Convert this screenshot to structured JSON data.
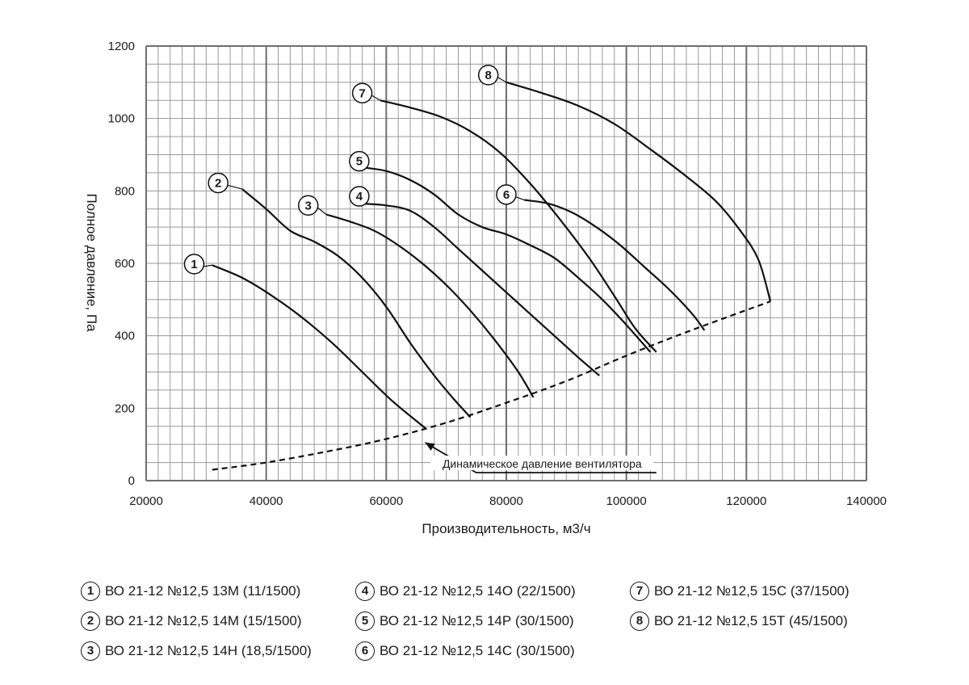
{
  "chart_data": {
    "type": "line",
    "xlabel": "Производительность, м3/ч",
    "ylabel": "Полное давление, Па",
    "xlim": [
      20000,
      140000
    ],
    "ylim": [
      0,
      1200
    ],
    "x_ticks": [
      "20000",
      "40000",
      "60000",
      "80000",
      "100000",
      "120000",
      "140000"
    ],
    "y_ticks": [
      "0",
      "200",
      "400",
      "600",
      "800",
      "1000",
      "1200"
    ],
    "grid": true,
    "series": [
      {
        "name": "1",
        "points": [
          [
            31000,
            595
          ],
          [
            36000,
            560
          ],
          [
            41000,
            510
          ],
          [
            46000,
            450
          ],
          [
            51000,
            380
          ],
          [
            56000,
            300
          ],
          [
            61000,
            220
          ],
          [
            66500,
            145
          ]
        ]
      },
      {
        "name": "2",
        "points": [
          [
            36000,
            805
          ],
          [
            40000,
            750
          ],
          [
            44000,
            690
          ],
          [
            48000,
            660
          ],
          [
            52000,
            620
          ],
          [
            56000,
            560
          ],
          [
            60000,
            480
          ],
          [
            64000,
            380
          ],
          [
            68000,
            290
          ],
          [
            71000,
            230
          ],
          [
            74000,
            175
          ]
        ]
      },
      {
        "name": "3",
        "points": [
          [
            50000,
            735
          ],
          [
            54000,
            715
          ],
          [
            58000,
            690
          ],
          [
            62000,
            650
          ],
          [
            66000,
            600
          ],
          [
            70000,
            540
          ],
          [
            74000,
            470
          ],
          [
            78000,
            390
          ],
          [
            82000,
            300
          ],
          [
            84500,
            230
          ]
        ]
      },
      {
        "name": "4",
        "points": [
          [
            56000,
            765
          ],
          [
            60000,
            760
          ],
          [
            64000,
            745
          ],
          [
            68000,
            700
          ],
          [
            72000,
            640
          ],
          [
            76000,
            580
          ],
          [
            80000,
            520
          ],
          [
            84000,
            460
          ],
          [
            88000,
            400
          ],
          [
            92000,
            340
          ],
          [
            95500,
            290
          ]
        ]
      },
      {
        "name": "5",
        "points": [
          [
            56000,
            865
          ],
          [
            60000,
            855
          ],
          [
            64000,
            830
          ],
          [
            68000,
            790
          ],
          [
            72000,
            735
          ],
          [
            76000,
            700
          ],
          [
            80000,
            680
          ],
          [
            84000,
            650
          ],
          [
            88000,
            615
          ],
          [
            92000,
            560
          ],
          [
            96000,
            500
          ],
          [
            100000,
            430
          ],
          [
            104000,
            355
          ]
        ]
      },
      {
        "name": "6",
        "points": [
          [
            83000,
            775
          ],
          [
            87000,
            765
          ],
          [
            91000,
            740
          ],
          [
            95000,
            700
          ],
          [
            99000,
            650
          ],
          [
            103000,
            590
          ],
          [
            107000,
            530
          ],
          [
            111000,
            460
          ],
          [
            113000,
            415
          ]
        ]
      },
      {
        "name": "7",
        "points": [
          [
            59000,
            1050
          ],
          [
            64000,
            1030
          ],
          [
            69000,
            1005
          ],
          [
            74000,
            965
          ],
          [
            79000,
            905
          ],
          [
            84000,
            820
          ],
          [
            89000,
            720
          ],
          [
            94000,
            610
          ],
          [
            98000,
            510
          ],
          [
            101500,
            420
          ],
          [
            105000,
            355
          ]
        ]
      },
      {
        "name": "8",
        "points": [
          [
            80000,
            1100
          ],
          [
            86000,
            1070
          ],
          [
            92000,
            1035
          ],
          [
            98000,
            985
          ],
          [
            104000,
            915
          ],
          [
            110000,
            840
          ],
          [
            115000,
            770
          ],
          [
            119000,
            690
          ],
          [
            122000,
            610
          ],
          [
            124000,
            495
          ]
        ]
      },
      {
        "name": "Динамическое давление вентилятора",
        "dashed": true,
        "points": [
          [
            31000,
            30
          ],
          [
            40000,
            50
          ],
          [
            50000,
            80
          ],
          [
            60000,
            115
          ],
          [
            70000,
            160
          ],
          [
            80000,
            215
          ],
          [
            90000,
            275
          ],
          [
            100000,
            345
          ],
          [
            110000,
            410
          ],
          [
            124000,
            495
          ]
        ]
      }
    ],
    "curve_labels": [
      {
        "id": "1",
        "x": 28000,
        "y": 598
      },
      {
        "id": "2",
        "x": 32000,
        "y": 822
      },
      {
        "id": "3",
        "x": 47000,
        "y": 760
      },
      {
        "id": "4",
        "x": 55500,
        "y": 785
      },
      {
        "id": "5",
        "x": 55500,
        "y": 882
      },
      {
        "id": "6",
        "x": 80000,
        "y": 790
      },
      {
        "id": "7",
        "x": 56000,
        "y": 1070
      },
      {
        "id": "8",
        "x": 77000,
        "y": 1120
      }
    ],
    "annotation": {
      "text": "Динамическое давление вентилятора",
      "arrow_tip": [
        66500,
        105
      ],
      "elbow": [
        75000,
        22
      ],
      "line_end": [
        105000,
        22
      ]
    }
  },
  "legend": [
    {
      "num": "1",
      "text": "ВО 21-12 №12,5 13М (11/1500)"
    },
    {
      "num": "2",
      "text": "ВО 21-12 №12,5 14М (15/1500)"
    },
    {
      "num": "3",
      "text": "ВО 21-12 №12,5 14Н (18,5/1500)"
    },
    {
      "num": "4",
      "text": "ВО 21-12 №12,5 14О (22/1500)"
    },
    {
      "num": "5",
      "text": "ВО 21-12 №12,5 14Р (30/1500)"
    },
    {
      "num": "6",
      "text": "ВО 21-12 №12,5 14С (30/1500)"
    },
    {
      "num": "7",
      "text": "ВО 21-12 №12,5 15С (37/1500)"
    },
    {
      "num": "8",
      "text": "ВО 21-12 №12,5 15Т (45/1500)"
    }
  ]
}
